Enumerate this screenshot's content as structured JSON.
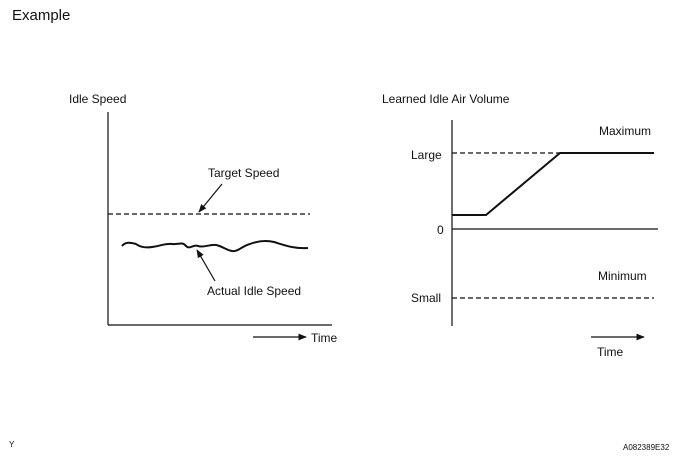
{
  "header": {
    "title": "Example"
  },
  "left_chart": {
    "title": "Idle Speed",
    "target_label": "Target Speed",
    "actual_label": "Actual Idle Speed",
    "x_label": "Time"
  },
  "right_chart": {
    "title": "Learned Idle Air Volume",
    "max_label": "Maximum",
    "min_label": "Minimum",
    "large_tick": "Large",
    "zero_tick": "0",
    "small_tick": "Small",
    "x_label": "Time"
  },
  "footer": {
    "left_code": "Y",
    "right_code": "A082389E32"
  }
}
